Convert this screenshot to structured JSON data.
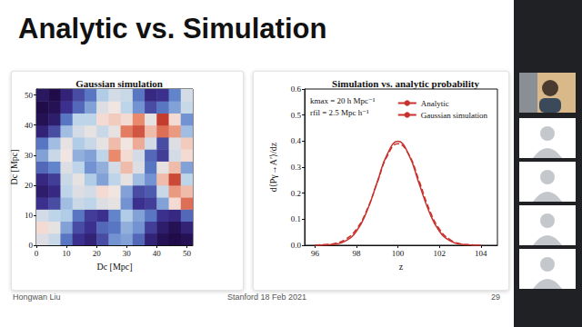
{
  "title": "Analytic vs. Simulation",
  "footer": {
    "author": "Hongwan Liu",
    "event": "Stanford 18 Feb 2021",
    "page": 29
  },
  "chart_data": [
    {
      "type": "heatmap",
      "title": "Gaussian simulation",
      "x_label": "Dc [Mpc]",
      "y_label": "Dc [Mpc]",
      "x_bins": [
        0,
        4,
        8,
        12,
        16,
        20,
        24,
        28,
        32,
        36,
        40,
        44,
        48,
        52
      ],
      "y_bins": [
        0,
        4,
        8,
        12,
        16,
        20,
        24,
        28,
        32,
        36,
        40,
        44,
        48,
        52
      ],
      "cells": [
        [
          0.5,
          0.3,
          -0.5,
          -1,
          -1.2,
          -0.8,
          -0.3,
          -0.2,
          -0.6,
          -1.2,
          -1.5,
          -1.6,
          -1.5
        ],
        [
          0.8,
          0.6,
          -0.2,
          -0.8,
          -1,
          -0.6,
          -0.5,
          -0.1,
          -0.3,
          -0.9,
          -1.3,
          -1.5,
          -1.2
        ],
        [
          0.4,
          0.2,
          0.1,
          -0.5,
          -0.9,
          -1,
          -0.4,
          0.1,
          -0.2,
          -0.5,
          -1,
          -1.1,
          -0.6
        ],
        [
          -1,
          -0.8,
          0,
          0.3,
          0.2,
          0.5,
          0.6,
          -0.3,
          -1,
          -0.9,
          -0.2,
          0.8,
          1.5
        ],
        [
          -1.3,
          -1.1,
          0.2,
          0.5,
          0.4,
          0.8,
          0.7,
          -0.2,
          -0.8,
          -0.7,
          0.3,
          1.2,
          1
        ],
        [
          -1.1,
          -0.9,
          0.3,
          0.6,
          0.1,
          -0.2,
          0.2,
          0.6,
          0,
          -0.3,
          1,
          1.8,
          0.2
        ],
        [
          -0.6,
          -0.4,
          0.5,
          0.2,
          -0.3,
          -0.1,
          0.4,
          1,
          0.5,
          -0.5,
          0.6,
          1,
          -0.2
        ],
        [
          -0.2,
          0.3,
          0.7,
          -0.1,
          -0.2,
          0.2,
          1.3,
          0.8,
          0.4,
          -0.6,
          -0.9,
          0.4,
          0.8
        ],
        [
          -0.5,
          0,
          0.6,
          0.1,
          0.3,
          0.6,
          1,
          0.7,
          1.1,
          0.4,
          -0.8,
          0.5,
          0.9
        ],
        [
          -1.2,
          -0.8,
          0,
          0.4,
          0.6,
          0.3,
          0.6,
          1.4,
          1.7,
          1,
          1.5,
          1.2,
          0
        ],
        [
          -1.5,
          -1.3,
          -0.5,
          0.2,
          0.2,
          0.8,
          0.9,
          0.8,
          1.3,
          0.6,
          1.9,
          0.8,
          -0.3
        ],
        [
          -1.6,
          -1.5,
          -1,
          -0.6,
          -0.2,
          0.5,
          0.7,
          0.2,
          -0.3,
          -0.8,
          -0.5,
          -0.2,
          0.3
        ],
        [
          -1.4,
          -1.6,
          -1.2,
          -0.8,
          -0.5,
          0.1,
          0.4,
          0.3,
          -0.5,
          -1.1,
          -1,
          -0.4,
          0.4
        ]
      ],
      "xlim": [
        0,
        52
      ],
      "ylim": [
        0,
        52
      ],
      "xticks": [
        0,
        10,
        20,
        30,
        40,
        50
      ],
      "yticks": [
        0,
        10,
        20,
        30,
        40,
        50
      ]
    },
    {
      "type": "line",
      "title": "Simulation vs. analytic probability",
      "x_label": "z",
      "y_label": "d⟨Pγ→A′⟩/dz",
      "annotations": [
        "kmax = 20 h Mpc⁻¹",
        "rfil = 2.5 Mpc h⁻¹"
      ],
      "x": [
        96,
        96.5,
        97,
        97.5,
        98,
        98.5,
        99,
        99.5,
        100,
        100.5,
        101,
        101.5,
        102,
        102.5,
        103,
        103.5,
        104
      ],
      "series": [
        {
          "name": "Analytic",
          "color": "#c8322d",
          "line_style": "solid",
          "values": [
            0.0,
            0.001,
            0.004,
            0.018,
            0.054,
            0.13,
            0.242,
            0.352,
            0.399,
            0.352,
            0.242,
            0.13,
            0.054,
            0.018,
            0.004,
            0.001,
            0.0
          ]
        },
        {
          "name": "Gaussian simulation",
          "color": "#c8322d",
          "line_style": "dashed",
          "values": [
            0.001,
            0.003,
            0.008,
            0.024,
            0.062,
            0.135,
            0.24,
            0.345,
            0.39,
            0.352,
            0.252,
            0.14,
            0.062,
            0.022,
            0.006,
            0.002,
            0.0
          ]
        }
      ],
      "xlim": [
        95.5,
        104.8
      ],
      "ylim": [
        0,
        0.6
      ],
      "xticks": [
        96,
        98,
        100,
        102,
        104
      ],
      "yticks": [
        {
          "value": 0,
          "label": "0.0"
        },
        {
          "value": 0.1,
          "label": "0.1"
        },
        {
          "value": 0.2,
          "label": "0.2"
        },
        {
          "value": 0.3,
          "label": "0.3"
        },
        {
          "value": 0.4,
          "label": "0.4"
        },
        {
          "value": 0.5,
          "label": "0.5"
        },
        {
          "value": 0.6,
          "label": "0.6"
        }
      ],
      "legend": "upper right"
    }
  ]
}
